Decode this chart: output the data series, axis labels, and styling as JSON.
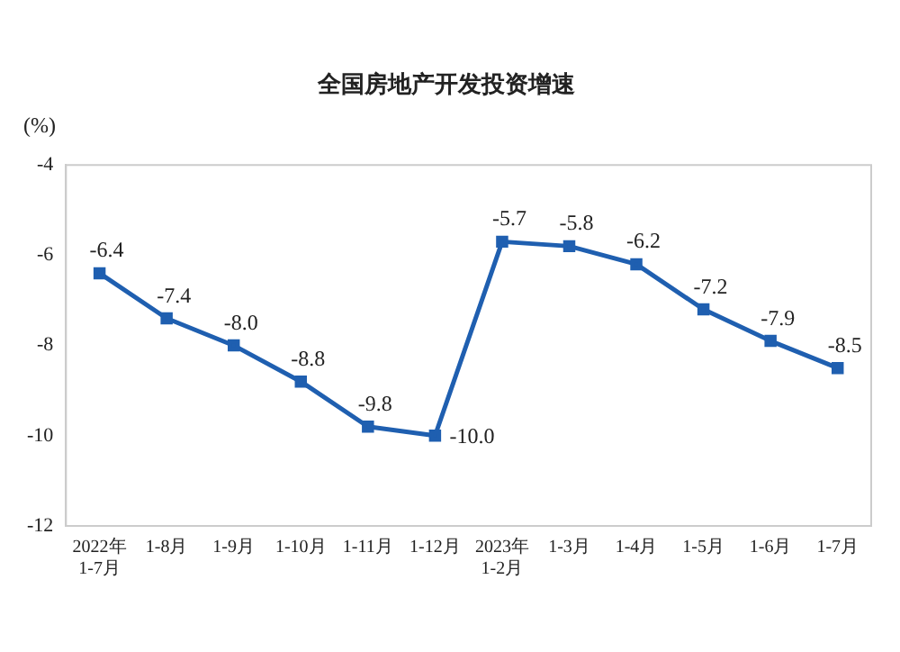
{
  "chart_data": {
    "type": "line",
    "title": "全国房地产开发投资增速",
    "ylabel": "(%)",
    "categories": [
      "2022年\n1-7月",
      "1-8月",
      "1-9月",
      "1-10月",
      "1-11月",
      "1-12月",
      "2023年\n1-2月",
      "1-3月",
      "1-4月",
      "1-5月",
      "1-6月",
      "1-7月"
    ],
    "series": [
      {
        "color": "#1f5fb0",
        "values": [
          -6.4,
          -7.4,
          -8.0,
          -8.8,
          -9.8,
          -10.0,
          -5.7,
          -5.8,
          -6.2,
          -7.2,
          -7.9,
          -8.5
        ],
        "value_labels": [
          "-6.4",
          "-7.4",
          "-8.0",
          "-8.8",
          "-9.8",
          "-10.0",
          "-5.7",
          "-5.8",
          "-6.2",
          "-7.2",
          "-7.9",
          "-8.5"
        ]
      }
    ],
    "ylim": [
      -12,
      -4
    ],
    "yticks": [
      -12,
      -10,
      -8,
      -6,
      -4
    ],
    "grid": false,
    "legend": false,
    "marker": "square",
    "line_style": "solid"
  }
}
